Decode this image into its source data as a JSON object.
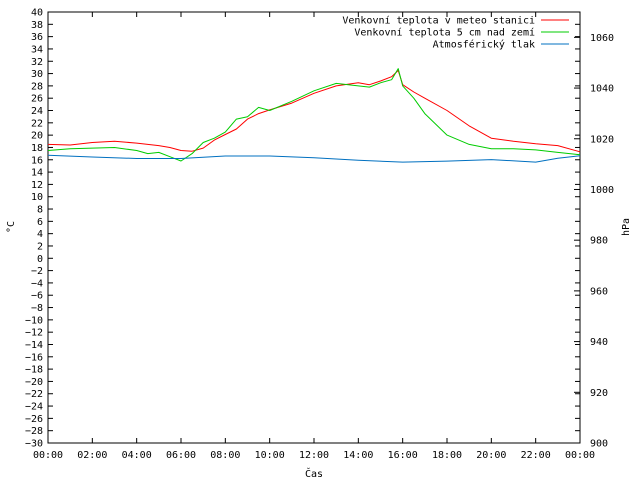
{
  "chart_data": {
    "type": "line",
    "title": "",
    "xlabel": "Čas",
    "ylabel": "°C",
    "y2label": "hPa",
    "x_ticks": [
      "00:00",
      "02:00",
      "04:00",
      "06:00",
      "08:00",
      "10:00",
      "12:00",
      "14:00",
      "16:00",
      "18:00",
      "20:00",
      "22:00",
      "00:00"
    ],
    "x_range_hours": [
      0,
      24
    ],
    "ylim": [
      -30,
      40
    ],
    "y_step": 2,
    "y2lim": [
      900,
      1070
    ],
    "y2_ticks": [
      900,
      920,
      940,
      960,
      980,
      1000,
      1020,
      1040,
      1060
    ],
    "grid": false,
    "legend_position": "top-right",
    "series": [
      {
        "name": "Venkovní teplota v meteo stanici",
        "color": "#ff0000",
        "axis": "left",
        "x": [
          0,
          1,
          2,
          3,
          4,
          5,
          5.5,
          6,
          6.5,
          7,
          7.5,
          8,
          8.5,
          9,
          9.5,
          10,
          11,
          12,
          13,
          14,
          14.5,
          15,
          15.5,
          15.8,
          16,
          16.5,
          17,
          18,
          19,
          20,
          21,
          22,
          23,
          24
        ],
        "values": [
          18.5,
          18.4,
          18.8,
          19.0,
          18.7,
          18.3,
          18.0,
          17.5,
          17.4,
          17.9,
          19.2,
          20.1,
          21.0,
          22.6,
          23.5,
          24.1,
          25.2,
          26.8,
          28.0,
          28.5,
          28.2,
          28.8,
          29.5,
          30.5,
          28.2,
          27.0,
          26.0,
          24.0,
          21.5,
          19.5,
          19.0,
          18.6,
          18.3,
          17.3
        ]
      },
      {
        "name": "Venkovní teplota 5 cm nad zemí",
        "color": "#00cc00",
        "axis": "left",
        "x": [
          0,
          1,
          2,
          3,
          4,
          4.5,
          5,
          5.5,
          6,
          6.5,
          7,
          7.5,
          8,
          8.5,
          9,
          9.5,
          10,
          11,
          12,
          13,
          14,
          14.5,
          15,
          15.5,
          15.8,
          16,
          16.5,
          17,
          18,
          19,
          20,
          21,
          22,
          23,
          24
        ],
        "values": [
          17.5,
          17.8,
          17.9,
          18.0,
          17.5,
          17.0,
          17.2,
          16.5,
          15.8,
          17.0,
          18.8,
          19.5,
          20.5,
          22.6,
          23.0,
          24.5,
          24.0,
          25.5,
          27.2,
          28.4,
          28.0,
          27.8,
          28.5,
          29.0,
          30.8,
          28.0,
          26.0,
          23.5,
          20.0,
          18.5,
          17.8,
          17.8,
          17.6,
          17.2,
          16.8
        ]
      },
      {
        "name": "Atmosférický tlak",
        "color": "#0070c0",
        "axis": "right",
        "x": [
          0,
          2,
          4,
          6,
          8,
          10,
          12,
          14,
          16,
          18,
          20,
          22,
          23,
          24
        ],
        "values": [
          1013.5,
          1012.8,
          1012.2,
          1012.2,
          1013.2,
          1013.2,
          1012.5,
          1011.5,
          1010.8,
          1011.2,
          1011.8,
          1010.8,
          1012.3,
          1013.3
        ]
      }
    ]
  }
}
